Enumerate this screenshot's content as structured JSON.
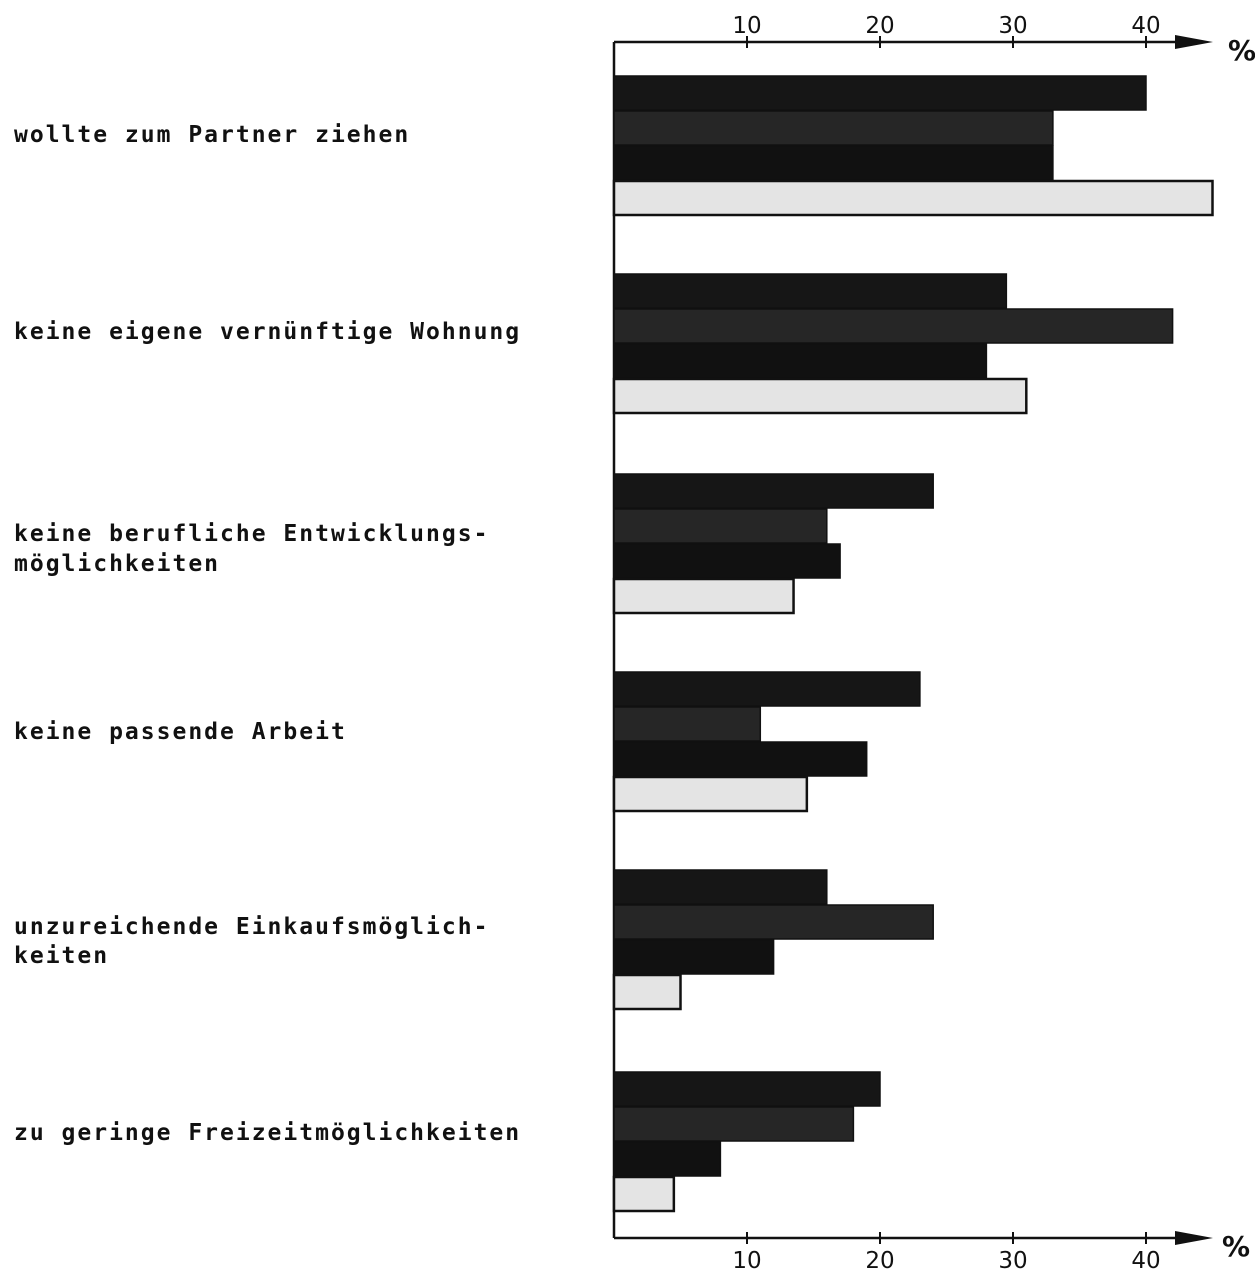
{
  "chart_data": {
    "type": "bar",
    "orientation": "horizontal",
    "categories": [
      [
        "wollte zum Partner ziehen"
      ],
      [
        "keine eigene vernünftige Wohnung"
      ],
      [
        "keine berufliche Entwicklungs-",
        "möglichkeiten"
      ],
      [
        "keine passende Arbeit"
      ],
      [
        "unzureichende Einkaufsmöglich-",
        "keiten"
      ],
      [
        "zu geringe Freizeitmöglichkeiten"
      ]
    ],
    "series": [
      {
        "values": [
          40,
          29.5,
          24,
          23,
          16,
          20
        ]
      },
      {
        "values": [
          33,
          42,
          16,
          11,
          24,
          18
        ]
      },
      {
        "values": [
          33,
          28,
          17,
          19,
          12,
          8
        ]
      },
      {
        "values": [
          45,
          31,
          13.5,
          14.5,
          5,
          4.5
        ]
      }
    ],
    "series_colors": [
      "#161616",
      "#262626",
      "#111111",
      "#e4e4e4"
    ],
    "xticks": [
      "10",
      "20",
      "30",
      "40"
    ],
    "unit": "%",
    "xlim": [
      0,
      45
    ],
    "grid": false,
    "legend": "none"
  }
}
